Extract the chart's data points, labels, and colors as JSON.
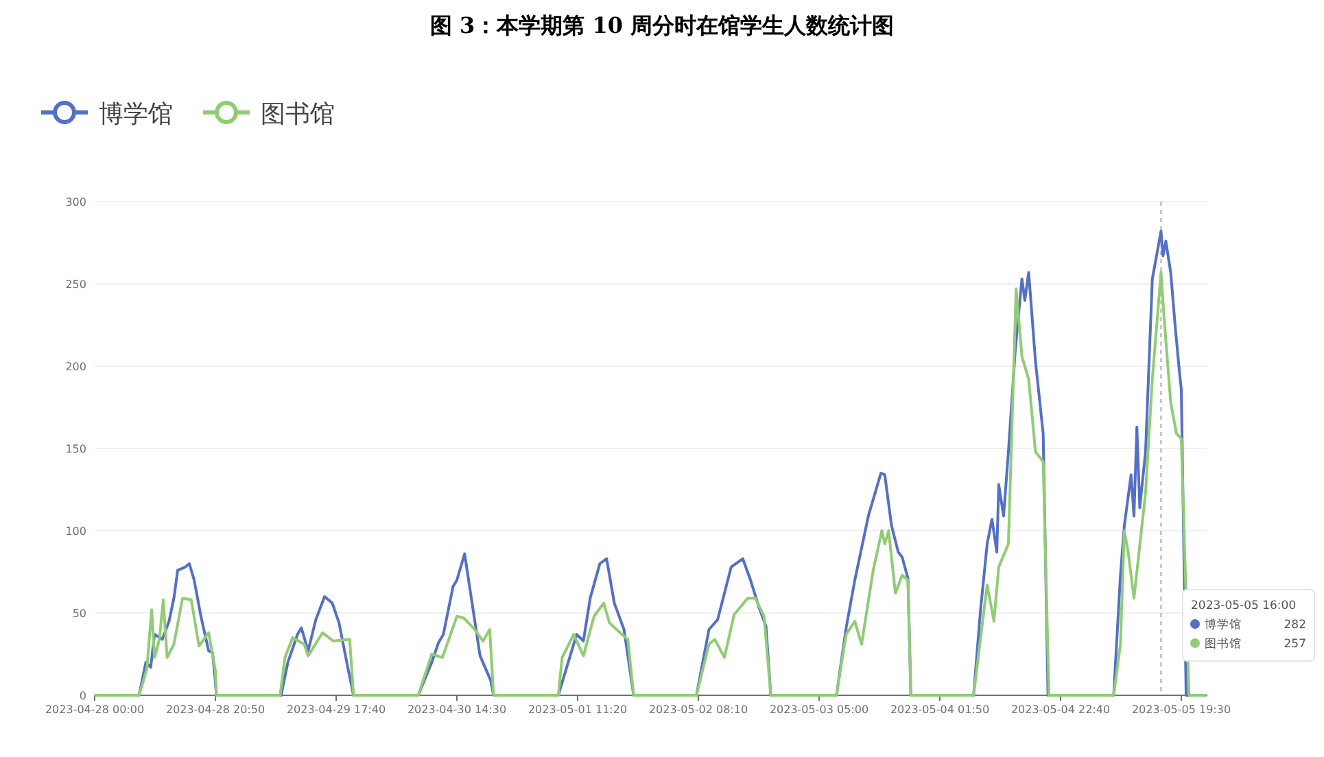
{
  "chart_data": {
    "type": "line",
    "title": "图 3：本学期第 10 周分时在馆学生人数统计图",
    "x": [
      "2023-04-28T00:00",
      "2023-04-28T07:40",
      "2023-04-28T08:50",
      "2023-04-28T09:40",
      "2023-04-28T10:20",
      "2023-04-28T11:40",
      "2023-04-28T12:50",
      "2023-04-28T13:40",
      "2023-04-28T14:20",
      "2023-04-28T15:40",
      "2023-04-28T16:20",
      "2023-04-28T17:10",
      "2023-04-28T18:20",
      "2023-04-28T19:40",
      "2023-04-28T20:20",
      "2023-04-28T20:50",
      "2023-04-28T21:00",
      "2023-04-29T08:10",
      "2023-04-29T09:20",
      "2023-04-29T11:00",
      "2023-04-29T11:40",
      "2023-04-29T12:50",
      "2023-04-29T14:10",
      "2023-04-29T15:40",
      "2023-04-29T17:00",
      "2023-04-29T18:10",
      "2023-04-29T19:40",
      "2023-04-29T20:40",
      "2023-04-30T07:50",
      "2023-04-30T10:10",
      "2023-04-30T11:20",
      "2023-04-30T12:10",
      "2023-04-30T13:50",
      "2023-04-30T14:30",
      "2023-04-30T15:50",
      "2023-04-30T18:30",
      "2023-04-30T20:20",
      "2023-04-30T20:50",
      "2023-05-01T08:00",
      "2023-05-01T11:10",
      "2023-05-01T12:20",
      "2023-05-01T13:30",
      "2023-05-01T15:10",
      "2023-05-01T16:20",
      "2023-05-01T17:40",
      "2023-05-01T19:20",
      "2023-05-01T21:00",
      "2023-05-02T07:50",
      "2023-05-02T10:00",
      "2023-05-02T11:30",
      "2023-05-02T13:50",
      "2023-05-02T15:50",
      "2023-05-02T17:10",
      "2023-05-02T18:40",
      "2023-05-02T19:50",
      "2023-05-02T20:40",
      "2023-05-03T08:00",
      "2023-05-03T09:40",
      "2023-05-03T11:10",
      "2023-05-03T13:30",
      "2023-05-03T15:40",
      "2023-05-03T16:20",
      "2023-05-03T17:30",
      "2023-05-03T18:40",
      "2023-05-03T19:20",
      "2023-05-03T20:20",
      "2023-05-03T20:50",
      "2023-05-04T07:40",
      "2023-05-04T08:50",
      "2023-05-04T10:00",
      "2023-05-04T10:50",
      "2023-05-04T11:40",
      "2023-05-04T12:00",
      "2023-05-04T12:50",
      "2023-05-04T13:40",
      "2023-05-04T14:50",
      "2023-05-04T16:00",
      "2023-05-04T16:30",
      "2023-05-04T17:10",
      "2023-05-04T18:20",
      "2023-05-04T19:40",
      "2023-05-04T20:30",
      "2023-05-05T07:50",
      "2023-05-05T09:00",
      "2023-05-05T09:40",
      "2023-05-05T10:50",
      "2023-05-05T11:20",
      "2023-05-05T11:50",
      "2023-05-05T12:20",
      "2023-05-05T13:20",
      "2023-05-05T14:30",
      "2023-05-05T16:00",
      "2023-05-05T16:20",
      "2023-05-05T16:50",
      "2023-05-05T17:40",
      "2023-05-05T18:30",
      "2023-05-05T19:10",
      "2023-05-05T19:30",
      "2023-05-05T20:20",
      "2023-05-05T23:50"
    ],
    "series": [
      {
        "name": "博学馆",
        "color": "#5470c6",
        "values": [
          0,
          0,
          20,
          17,
          37,
          34,
          45,
          59,
          76,
          78,
          80,
          70,
          48,
          27,
          26,
          8,
          0,
          0,
          20,
          37,
          41,
          27,
          46,
          60,
          56,
          44,
          17,
          0,
          0,
          20,
          32,
          37,
          66,
          70,
          86,
          24,
          9,
          0,
          0,
          37,
          33,
          59,
          80,
          83,
          56,
          40,
          0,
          0,
          40,
          46,
          78,
          83,
          70,
          53,
          42,
          0,
          0,
          41,
          70,
          109,
          135,
          134,
          103,
          87,
          84,
          71,
          0,
          0,
          51,
          92,
          107,
          87,
          128,
          109,
          148,
          209,
          253,
          240,
          257,
          203,
          159,
          0,
          0,
          73,
          103,
          134,
          109,
          163,
          114,
          148,
          253,
          282,
          267,
          276,
          257,
          222,
          197,
          186,
          0,
          0
        ]
      },
      {
        "name": "图书馆",
        "color": "#91cc75",
        "x": [
          "2023-04-28T00:00",
          "2023-04-28T07:40",
          "2023-04-28T09:00",
          "2023-04-28T09:50",
          "2023-04-28T10:20",
          "2023-04-28T11:10",
          "2023-04-28T11:50",
          "2023-04-28T12:30",
          "2023-04-28T13:40",
          "2023-04-28T15:10",
          "2023-04-28T16:40",
          "2023-04-28T18:00",
          "2023-04-28T19:40",
          "2023-04-28T20:50",
          "2023-04-28T21:00",
          "2023-04-29T08:00",
          "2023-04-29T08:50",
          "2023-04-29T10:10",
          "2023-04-29T12:10",
          "2023-04-29T12:50",
          "2023-04-29T15:20",
          "2023-04-29T17:10",
          "2023-04-29T20:00",
          "2023-04-29T20:40",
          "2023-04-30T07:50",
          "2023-04-30T10:10",
          "2023-04-30T12:00",
          "2023-04-30T14:30",
          "2023-04-30T15:40",
          "2023-04-30T17:20",
          "2023-04-30T19:00",
          "2023-04-30T20:10",
          "2023-04-30T20:50",
          "2023-05-01T08:00",
          "2023-05-01T08:40",
          "2023-05-01T10:40",
          "2023-05-01T12:20",
          "2023-05-01T14:10",
          "2023-05-01T15:50",
          "2023-05-01T16:50",
          "2023-05-01T18:40",
          "2023-05-01T20:00",
          "2023-05-01T21:00",
          "2023-05-02T07:50",
          "2023-05-02T10:00",
          "2023-05-02T11:00",
          "2023-05-02T12:40",
          "2023-05-02T14:20",
          "2023-05-02T16:40",
          "2023-05-02T18:00",
          "2023-05-02T19:30",
          "2023-05-02T20:40",
          "2023-05-03T08:00",
          "2023-05-03T09:40",
          "2023-05-03T11:10",
          "2023-05-03T12:20",
          "2023-05-03T14:20",
          "2023-05-03T15:50",
          "2023-05-03T16:20",
          "2023-05-03T17:00",
          "2023-05-03T18:10",
          "2023-05-03T19:20",
          "2023-05-03T20:20",
          "2023-05-03T20:50",
          "2023-05-04T07:40",
          "2023-05-04T08:50",
          "2023-05-04T10:00",
          "2023-05-04T11:10",
          "2023-05-04T12:00",
          "2023-05-04T13:40",
          "2023-05-04T15:00",
          "2023-05-04T16:00",
          "2023-05-04T17:10",
          "2023-05-04T18:20",
          "2023-05-04T19:40",
          "2023-05-04T20:40",
          "2023-05-05T07:50",
          "2023-05-05T09:00",
          "2023-05-05T09:40",
          "2023-05-05T10:20",
          "2023-05-05T11:20",
          "2023-05-05T13:20",
          "2023-05-05T14:30",
          "2023-05-05T16:00",
          "2023-05-05T16:30",
          "2023-05-05T17:40",
          "2023-05-05T18:40",
          "2023-05-05T19:30",
          "2023-05-05T20:50",
          "2023-05-05T23:50"
        ],
        "values": [
          0,
          0,
          16,
          52,
          23,
          34,
          58,
          23,
          31,
          59,
          58,
          30,
          38,
          15,
          0,
          0,
          23,
          35,
          31,
          24,
          38,
          33,
          34,
          0,
          0,
          25,
          23,
          48,
          47,
          41,
          33,
          40,
          0,
          0,
          23,
          37,
          24,
          48,
          56,
          44,
          38,
          34,
          0,
          0,
          31,
          34,
          23,
          49,
          59,
          59,
          48,
          0,
          0,
          37,
          45,
          31,
          76,
          100,
          92,
          100,
          62,
          73,
          70,
          0,
          0,
          34,
          67,
          45,
          78,
          92,
          247,
          206,
          192,
          148,
          142,
          0,
          0,
          31,
          100,
          87,
          59,
          123,
          192,
          257,
          231,
          178,
          159,
          156,
          0,
          0
        ]
      }
    ],
    "xlim": [
      "2023-04-28T00:00",
      "2023-05-06T00:00"
    ],
    "xticks": [
      {
        "value": "2023-04-28T00:00",
        "label": "2023-04-28 00:00"
      },
      {
        "value": "2023-04-28T20:50",
        "label": "2023-04-28 20:50"
      },
      {
        "value": "2023-04-29T17:40",
        "label": "2023-04-29 17:40"
      },
      {
        "value": "2023-04-30T14:30",
        "label": "2023-04-30 14:30"
      },
      {
        "value": "2023-05-01T11:20",
        "label": "2023-05-01 11:20"
      },
      {
        "value": "2023-05-02T08:10",
        "label": "2023-05-02 08:10"
      },
      {
        "value": "2023-05-03T05:00",
        "label": "2023-05-03 05:00"
      },
      {
        "value": "2023-05-04T01:50",
        "label": "2023-05-04 01:50"
      },
      {
        "value": "2023-05-04T22:40",
        "label": "2023-05-04 22:40"
      },
      {
        "value": "2023-05-05T19:30",
        "label": "2023-05-05 19:30"
      }
    ],
    "ylim": [
      0,
      300
    ],
    "yticks": [
      0,
      50,
      100,
      150,
      200,
      250,
      300
    ],
    "grid": "y",
    "legend": "top left",
    "ref_lines": [
      {
        "axis": "x",
        "value": "2023-05-05T16:00",
        "color": "#aaaaaa",
        "line_style": "dashed"
      }
    ],
    "annotations": [
      "2023-05-05 16:00",
      "博学馆",
      "282",
      "图书馆",
      "257"
    ]
  }
}
